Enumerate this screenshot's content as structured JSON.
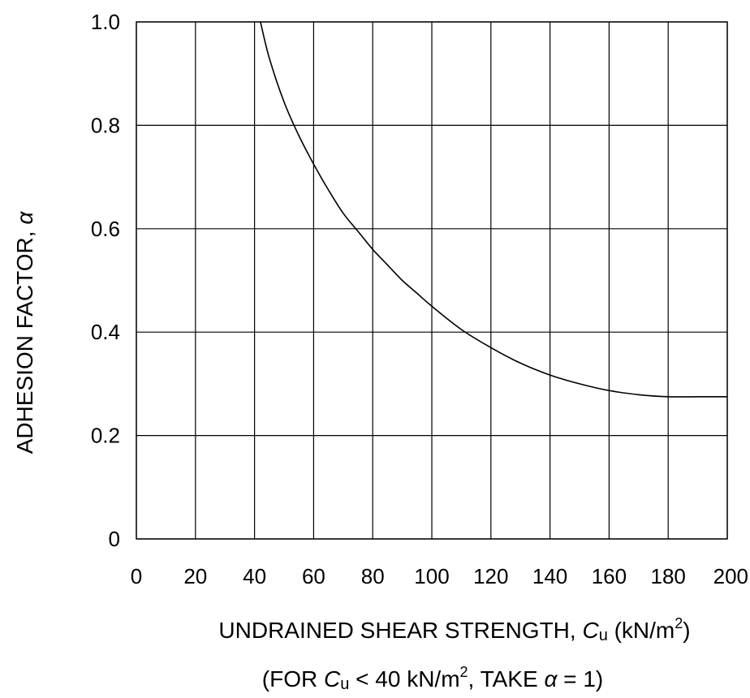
{
  "chart_data": {
    "type": "line",
    "xlim": [
      0,
      200
    ],
    "ylim": [
      0,
      1.0
    ],
    "x_ticks": [
      0,
      20,
      40,
      60,
      80,
      100,
      120,
      140,
      160,
      180,
      200
    ],
    "x_tick_labels": [
      "0",
      "20",
      "40",
      "60",
      "80",
      "100",
      "120",
      "140",
      "160",
      "180",
      "200"
    ],
    "y_ticks": [
      0,
      0.2,
      0.4,
      0.6,
      0.8,
      1.0
    ],
    "y_tick_labels": [
      "0",
      "0.2",
      "0.4",
      "0.6",
      "0.8",
      "1.0"
    ],
    "grid": true,
    "ylabel": {
      "text": "ADHESION FACTOR, ",
      "symbol": "α"
    },
    "xlabel": {
      "prefix": "UNDRAINED SHEAR STRENGTH, ",
      "var": "C",
      "var_sub": "u",
      "unit_open": " (kN/m",
      "unit_sup": "2",
      "unit_close": ")"
    },
    "note": {
      "open": "(FOR ",
      "var": "C",
      "var_sub": "u",
      "middle": " < 40 kN/m",
      "sup": "2",
      "after_sup": ", TAKE ",
      "symbol": "α",
      "close": " = 1)"
    },
    "series": [
      {
        "x": [
          42,
          45,
          50,
          55,
          60,
          65,
          70,
          75,
          80,
          85,
          90,
          95,
          100,
          110,
          120,
          130,
          140,
          150,
          160,
          170,
          180,
          190,
          200
        ],
        "y": [
          1.0,
          0.93,
          0.845,
          0.78,
          0.725,
          0.675,
          0.63,
          0.595,
          0.56,
          0.53,
          0.5,
          0.475,
          0.45,
          0.405,
          0.37,
          0.34,
          0.317,
          0.3,
          0.287,
          0.279,
          0.275,
          0.275,
          0.275
        ]
      }
    ]
  }
}
